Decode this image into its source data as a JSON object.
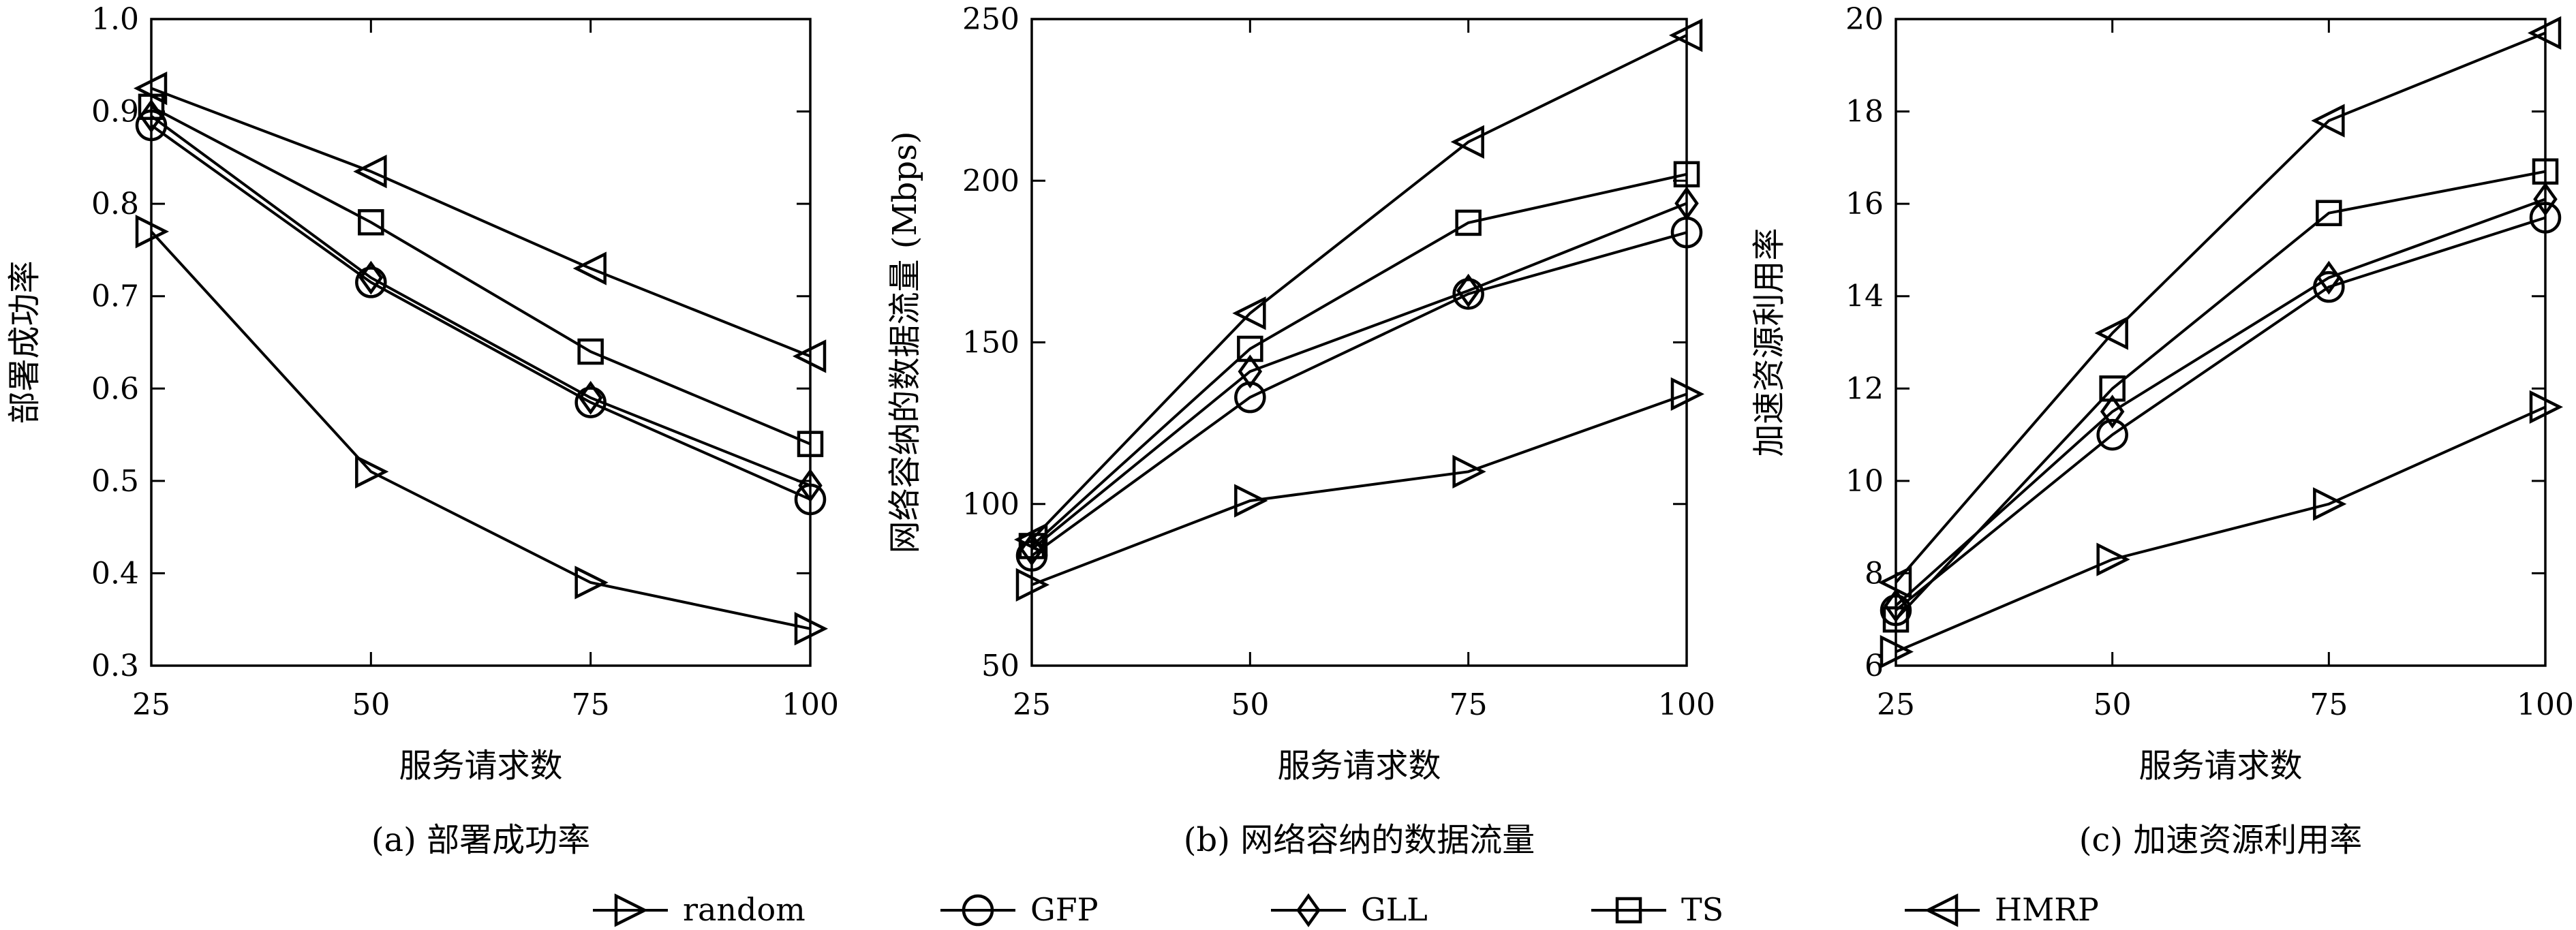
{
  "chart_data": [
    {
      "type": "line",
      "x": [
        25,
        50,
        75,
        100
      ],
      "xticks": [
        "25",
        "50",
        "75",
        "100"
      ],
      "xlabel": "服务请求数",
      "ylabel": "部署成功率",
      "ylim": [
        0.3,
        1.0
      ],
      "yticks": [
        "0.3",
        "0.4",
        "0.5",
        "0.6",
        "0.7",
        "0.8",
        "0.9",
        "1.0"
      ],
      "caption": "(a) 部署成功率",
      "grid": false,
      "series": [
        {
          "name": "random",
          "marker": "triangle-right",
          "values": [
            0.77,
            0.51,
            0.39,
            0.34
          ]
        },
        {
          "name": "GFP",
          "marker": "circle",
          "values": [
            0.885,
            0.715,
            0.585,
            0.48
          ]
        },
        {
          "name": "GLL",
          "marker": "diamond",
          "values": [
            0.895,
            0.72,
            0.59,
            0.495
          ]
        },
        {
          "name": "TS",
          "marker": "square",
          "values": [
            0.905,
            0.78,
            0.64,
            0.54
          ]
        },
        {
          "name": "HMRP",
          "marker": "triangle-left",
          "values": [
            0.925,
            0.835,
            0.73,
            0.635
          ]
        }
      ]
    },
    {
      "type": "line",
      "x": [
        25,
        50,
        75,
        100
      ],
      "xticks": [
        "25",
        "50",
        "75",
        "100"
      ],
      "xlabel": "服务请求数",
      "ylabel": "网络容纳的数据流量 (Mbps)",
      "ylim": [
        50,
        250
      ],
      "yticks": [
        "50",
        "100",
        "150",
        "200",
        "250"
      ],
      "caption": "(b) 网络容纳的数据流量",
      "grid": false,
      "series": [
        {
          "name": "random",
          "marker": "triangle-right",
          "values": [
            75,
            101,
            110,
            134
          ]
        },
        {
          "name": "GFP",
          "marker": "circle",
          "values": [
            84,
            133,
            165,
            184
          ]
        },
        {
          "name": "GLL",
          "marker": "diamond",
          "values": [
            86,
            141,
            166,
            193
          ]
        },
        {
          "name": "TS",
          "marker": "square",
          "values": [
            87,
            148,
            187,
            202
          ]
        },
        {
          "name": "HMRP",
          "marker": "triangle-left",
          "values": [
            89,
            159,
            212,
            245
          ]
        }
      ]
    },
    {
      "type": "line",
      "x": [
        25,
        50,
        75,
        100
      ],
      "xticks": [
        "25",
        "50",
        "75",
        "100"
      ],
      "xlabel": "服务请求数",
      "ylabel": "加速资源利用率",
      "ylim": [
        6,
        20
      ],
      "yticks": [
        "6",
        "8",
        "10",
        "12",
        "14",
        "16",
        "18",
        "20"
      ],
      "caption": "(c) 加速资源利用率",
      "grid": false,
      "series": [
        {
          "name": "random",
          "marker": "triangle-right",
          "values": [
            6.3,
            8.3,
            9.5,
            11.6
          ]
        },
        {
          "name": "GFP",
          "marker": "circle",
          "values": [
            7.2,
            11.0,
            14.2,
            15.7
          ]
        },
        {
          "name": "GLL",
          "marker": "diamond",
          "values": [
            7.3,
            11.5,
            14.4,
            16.1
          ]
        },
        {
          "name": "TS",
          "marker": "square",
          "values": [
            7.0,
            12.0,
            15.8,
            16.7
          ]
        },
        {
          "name": "HMRP",
          "marker": "triangle-left",
          "values": [
            7.8,
            13.2,
            17.8,
            19.7
          ]
        }
      ]
    }
  ],
  "legend": {
    "placement": "bottom",
    "entries": [
      {
        "label": "random",
        "marker": "triangle-right"
      },
      {
        "label": "GFP",
        "marker": "circle"
      },
      {
        "label": "GLL",
        "marker": "diamond"
      },
      {
        "label": "TS",
        "marker": "square"
      },
      {
        "label": "HMRP",
        "marker": "triangle-left"
      }
    ]
  },
  "colors": {
    "line": "#000000",
    "background": "#ffffff"
  }
}
